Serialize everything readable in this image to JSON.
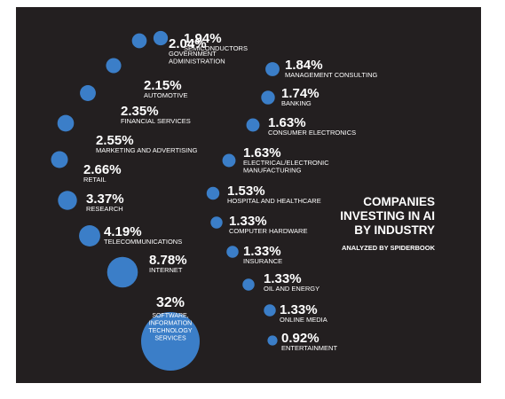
{
  "chart_data": {
    "type": "bubble",
    "title": [
      "COMPANIES",
      "INVESTING IN AI",
      "BY INDUSTRY"
    ],
    "subtitle": "ANALYZED BY SPIDERBOOK",
    "bubble_color": "#3b7ec8",
    "background_color": "#231f20",
    "items": [
      {
        "value": 32,
        "value_label": "32%",
        "label": [
          "SOFTWARE,",
          "INFORMATION",
          "TECHNOLOGY",
          "SERVICES"
        ]
      },
      {
        "value": 8.78,
        "value_label": "8.78%",
        "label": [
          "INTERNET"
        ]
      },
      {
        "value": 4.19,
        "value_label": "4.19%",
        "label": [
          "TELECOMMUNICATIONS"
        ]
      },
      {
        "value": 3.37,
        "value_label": "3.37%",
        "label": [
          "RESEARCH"
        ]
      },
      {
        "value": 2.66,
        "value_label": "2.66%",
        "label": [
          "RETAIL"
        ]
      },
      {
        "value": 2.55,
        "value_label": "2.55%",
        "label": [
          "MARKETING AND ADVERTISING"
        ]
      },
      {
        "value": 2.35,
        "value_label": "2.35%",
        "label": [
          "FINANCIAL SERVICES"
        ]
      },
      {
        "value": 2.15,
        "value_label": "2.15%",
        "label": [
          "AUTOMOTIVE"
        ]
      },
      {
        "value": 2.04,
        "value_label": "2.04%",
        "label": [
          "GOVERNMENT",
          "ADMINISTRATION"
        ]
      },
      {
        "value": 1.94,
        "value_label": "1.94%",
        "label": [
          "SEMICONDUCTORS"
        ]
      },
      {
        "value": 1.84,
        "value_label": "1.84%",
        "label": [
          "MANAGEMENT CONSULTING"
        ]
      },
      {
        "value": 1.74,
        "value_label": "1.74%",
        "label": [
          "BANKING"
        ]
      },
      {
        "value": 1.63,
        "value_label": "1.63%",
        "label": [
          "CONSUMER ELECTRONICS"
        ]
      },
      {
        "value": 1.63,
        "value_label": "1.63%",
        "label": [
          "ELECTRICAL/ELECTRONIC",
          "MANUFACTURING"
        ]
      },
      {
        "value": 1.53,
        "value_label": "1.53%",
        "label": [
          "HOSPITAL AND HEALTHCARE"
        ]
      },
      {
        "value": 1.33,
        "value_label": "1.33%",
        "label": [
          "COMPUTER HARDWARE"
        ]
      },
      {
        "value": 1.33,
        "value_label": "1.33%",
        "label": [
          "INSURANCE"
        ]
      },
      {
        "value": 1.33,
        "value_label": "1.33%",
        "label": [
          "OIL AND ENERGY"
        ]
      },
      {
        "value": 1.33,
        "value_label": "1.33%",
        "label": [
          "ONLINE MEDIA"
        ]
      },
      {
        "value": 0.92,
        "value_label": "0.92%",
        "label": [
          "ENTERTAINMENT"
        ]
      }
    ]
  }
}
